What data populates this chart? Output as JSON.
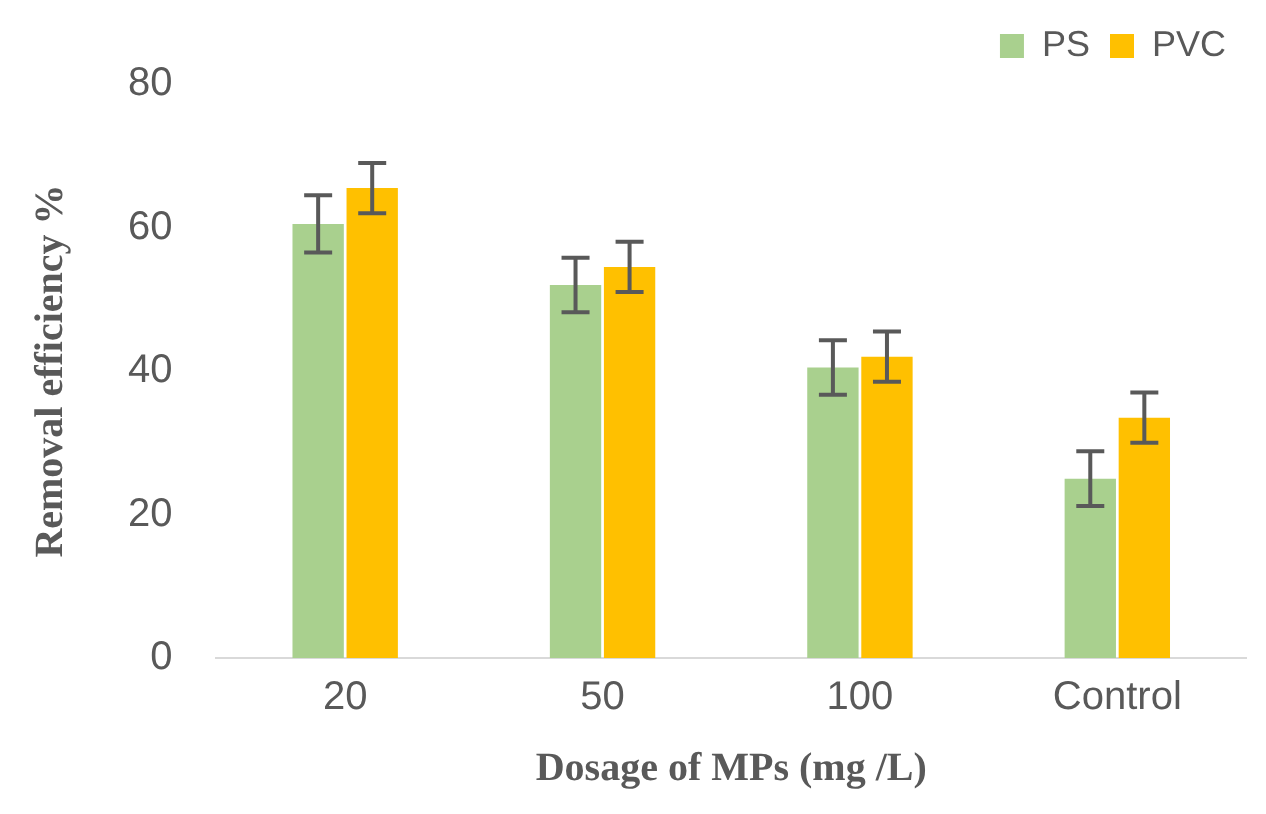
{
  "chart_data": {
    "type": "bar",
    "xlabel": "Dosage of MPs (mg /L)",
    "ylabel": "Removal efficiency %",
    "categories": [
      "20",
      "50",
      "100",
      "Control"
    ],
    "series": [
      {
        "name": "PS",
        "color": "#a9d08e",
        "values": [
          60.5,
          52,
          40.5,
          25
        ],
        "errors": [
          4,
          3.8,
          3.8,
          3.8
        ]
      },
      {
        "name": "PVC",
        "color": "#ffc000",
        "values": [
          65.5,
          54.5,
          42,
          33.5
        ],
        "errors": [
          3.5,
          3.5,
          3.5,
          3.5
        ]
      }
    ],
    "ylim": [
      0,
      80
    ],
    "yticks": [
      0,
      20,
      40,
      60,
      80
    ],
    "grid": false,
    "legend": "top right"
  }
}
